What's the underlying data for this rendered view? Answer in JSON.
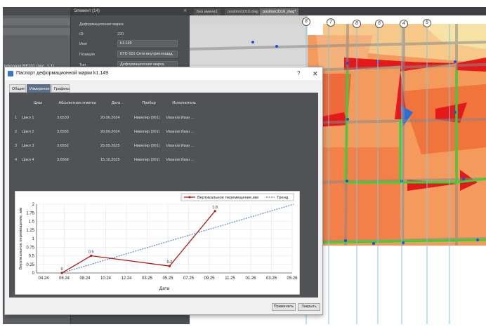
{
  "left_panel": {
    "label": "рфоразд RF101 (пос. 1.1)"
  },
  "props_panel": {
    "title": "Элемент (14)",
    "heading": "Деформационная марка",
    "rows": [
      {
        "label": "ID:",
        "value": "220"
      },
      {
        "label": "Имя",
        "value": "k1.149"
      },
      {
        "label": "Позиция",
        "value": "КТС-101 Сети внутриплощад"
      },
      {
        "label": "Тип",
        "value": "Деформационная марка"
      }
    ]
  },
  "doc_tabs": [
    "Без имени1",
    "position1D10.dwg",
    "position1D16_dwg*"
  ],
  "axes_labels": [
    "8",
    "7",
    "8",
    "6",
    "4",
    "5"
  ],
  "dialog": {
    "title": "Паспорт деформационной марки k1.149",
    "help": "?",
    "close": "✕",
    "tabs": [
      "Общие",
      "Измерения",
      "Графика"
    ],
    "active_tab": 1,
    "table": {
      "headers": [
        "",
        "Цикл",
        "Абсолютная отметка",
        "Дата",
        "Прибор",
        "Исполнитель"
      ],
      "rows": [
        [
          "1",
          "Цикл 1",
          "3.6530",
          "20.06.2024",
          "Нивелир (001)",
          "Иванов Иван ..."
        ],
        [
          "2",
          "Цикл 2",
          "3.6555",
          "20.09.2024",
          "Нивелир (001)",
          "Иванов Иван ..."
        ],
        [
          "3",
          "Цикл 3",
          "3.6552",
          "25.05.2025",
          "Нивелир (001)",
          "Иванов Иван ..."
        ],
        [
          "4",
          "Цикл 4",
          "3.6568",
          "15.10.2025",
          "Нивелир (001)",
          "Иванов Иван ..."
        ]
      ]
    },
    "buttons": {
      "apply": "Применить",
      "close": "Закрыть"
    }
  },
  "chart_data": {
    "type": "line",
    "xlabel": "Дата",
    "ylabel": "Вертикальное перемещение, мм",
    "x_ticks": [
      "04.24",
      "06.24",
      "08.24",
      "10.24",
      "12.24",
      "03.25",
      "05.25",
      "07.25",
      "09.25",
      "11.25",
      "01.26",
      "03.26",
      "05.26"
    ],
    "y_ticks": [
      "0",
      "0.25",
      "0.5",
      "0.75",
      "1",
      "1.25",
      "1.5",
      "1.75",
      "2"
    ],
    "ylim": [
      0,
      2
    ],
    "grid": true,
    "legend": "top-right",
    "series": [
      {
        "name": "Вертикальное перемещение,мм",
        "color": "#b01818",
        "x": [
          "2024-06-20",
          "2024-09-20",
          "2025-05-25",
          "2025-10-15"
        ],
        "y": [
          0,
          0.5,
          0.2,
          1.8
        ],
        "labels": [
          "0",
          "0.5",
          "0.2",
          "1.8"
        ]
      },
      {
        "name": "Тренд",
        "color": "#2c5aa0",
        "style": "dashed",
        "x": [
          "2024-06-20",
          "2026-06-20"
        ],
        "y": [
          0,
          2.0
        ]
      }
    ]
  }
}
